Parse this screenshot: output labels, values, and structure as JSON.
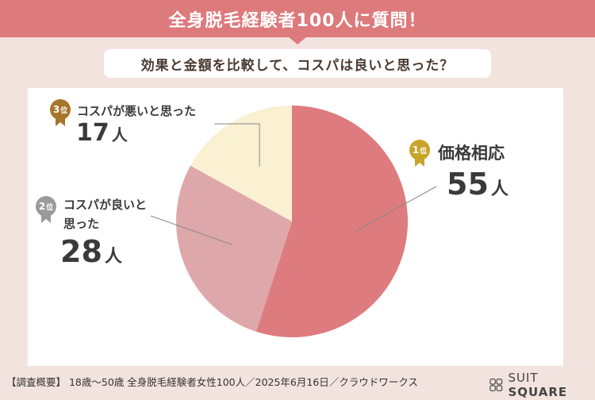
{
  "header": {
    "title": "全身脱毛経験者100人に質問！"
  },
  "subtitle": "効果と金額を比較して、コスパは良いと思った？",
  "ranks": [
    {
      "rank_num": "1",
      "rank_suffix": "位",
      "label_line1": "価格相応",
      "label_line2": "",
      "count": "55",
      "unit": "人"
    },
    {
      "rank_num": "2",
      "rank_suffix": "位",
      "label_line1": "コスパが良いと",
      "label_line2": "思った",
      "count": "28",
      "unit": "人"
    },
    {
      "rank_num": "3",
      "rank_suffix": "位",
      "label_line1": "コスパが悪いと思った",
      "label_line2": "",
      "count": "17",
      "unit": "人"
    }
  ],
  "chart_data": {
    "type": "pie",
    "title": "効果と金額を比較して、コスパは良いと思った？",
    "slices": [
      {
        "label": "価格相応",
        "value": 55,
        "color": "#de7b7e"
      },
      {
        "label": "コスパが良いと思った",
        "value": 28,
        "color": "#dea8aa"
      },
      {
        "label": "コスパが悪いと思った",
        "value": 17,
        "color": "#faf0d2"
      }
    ]
  },
  "badge_colors": {
    "gold": "#c9a42a",
    "silver": "#9a9a9a",
    "bronze": "#a7752a"
  },
  "footer": "【調査概要】 18歳〜50歳 全身脱毛経験者女性100人／2025年6月16日／クラウドワークス",
  "logo": {
    "text_light": "SUIT",
    "text_bold": "SQUARE",
    "icon": "suit-square-logo-icon"
  }
}
